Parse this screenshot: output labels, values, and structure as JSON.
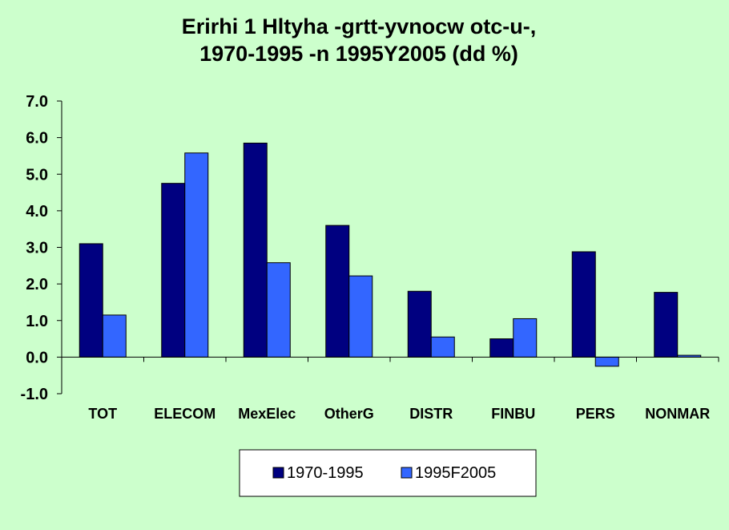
{
  "chart_data": {
    "type": "bar",
    "title_lines": [
      "Erirhi 1   Hltyha -grtt-yvnocw otc-u-,",
      "1970-1995 -n 1995Y2005 (dd %)"
    ],
    "categories": [
      "TOT",
      "ELECOM",
      "MexElec",
      "OtherG",
      "DISTR",
      "FINBU",
      "PERS",
      "NONMAR"
    ],
    "series": [
      {
        "name": "1970-1995",
        "color": "#000080",
        "values": [
          3.1,
          4.75,
          5.85,
          3.6,
          1.8,
          0.5,
          2.88,
          1.77
        ]
      },
      {
        "name": "1995F2005",
        "color": "#3366ff",
        "values": [
          1.15,
          5.58,
          2.58,
          2.22,
          0.55,
          1.05,
          -0.25,
          0.05
        ]
      }
    ],
    "ylim": [
      -1.0,
      7.0
    ],
    "y_ticks": [
      "7.0",
      "6.0",
      "5.0",
      "4.0",
      "3.0",
      "2.0",
      "1.0",
      "0.0",
      "-1.0"
    ],
    "grid": false,
    "legend_position": "bottom",
    "background_color": "#ccffcc",
    "plot_background_color": "#ccffcc"
  }
}
